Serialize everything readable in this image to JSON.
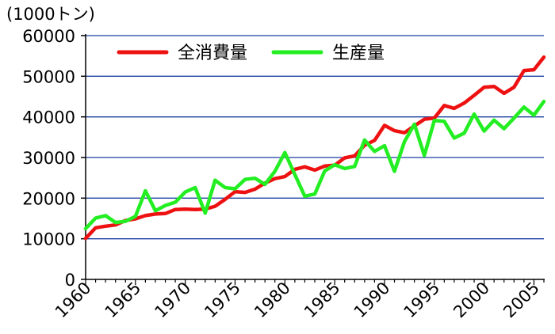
{
  "chart_data": {
    "type": "line",
    "unit_label": "(1000トン)",
    "xlim": [
      1960,
      2006
    ],
    "ylim": [
      0,
      60000
    ],
    "yticks": [
      0,
      10000,
      20000,
      30000,
      40000,
      50000,
      60000
    ],
    "xticks": [
      1960,
      1965,
      1970,
      1975,
      1980,
      1985,
      1990,
      1995,
      2000,
      2005
    ],
    "grid": true,
    "legend_position": "top-left",
    "x": [
      1960,
      1961,
      1962,
      1963,
      1964,
      1965,
      1966,
      1967,
      1968,
      1969,
      1970,
      1971,
      1972,
      1973,
      1974,
      1975,
      1976,
      1977,
      1978,
      1979,
      1980,
      1981,
      1982,
      1983,
      1984,
      1985,
      1986,
      1987,
      1988,
      1989,
      1990,
      1991,
      1992,
      1993,
      1994,
      1995,
      1996,
      1997,
      1998,
      1999,
      2000,
      2001,
      2002,
      2003,
      2004,
      2005,
      2006
    ],
    "series": [
      {
        "name": "全消費量",
        "color": "#ee1111",
        "values": [
          10100,
          12700,
          13100,
          13400,
          14500,
          14900,
          15700,
          16100,
          16200,
          17200,
          17300,
          17200,
          17300,
          18000,
          19700,
          21600,
          21400,
          22200,
          23700,
          24800,
          25300,
          27100,
          27700,
          26900,
          27900,
          28100,
          29900,
          30400,
          33000,
          34200,
          37900,
          36600,
          36100,
          37800,
          39400,
          39700,
          42800,
          42100,
          43400,
          45300,
          47300,
          47500,
          45800,
          47300,
          51400,
          51600,
          54700
        ]
      },
      {
        "name": "生産量",
        "color": "#22ee22",
        "values": [
          12500,
          15100,
          15700,
          14000,
          14300,
          15500,
          21800,
          16900,
          18200,
          19000,
          21500,
          22600,
          16300,
          24400,
          22600,
          22300,
          24600,
          24900,
          23400,
          26600,
          31200,
          25800,
          20500,
          21000,
          26700,
          28200,
          27300,
          27800,
          34300,
          31500,
          32900,
          26600,
          33900,
          38200,
          30500,
          39100,
          38900,
          34800,
          36000,
          40700,
          36500,
          39200,
          37100,
          39700,
          42400,
          40400,
          43800
        ]
      }
    ]
  }
}
